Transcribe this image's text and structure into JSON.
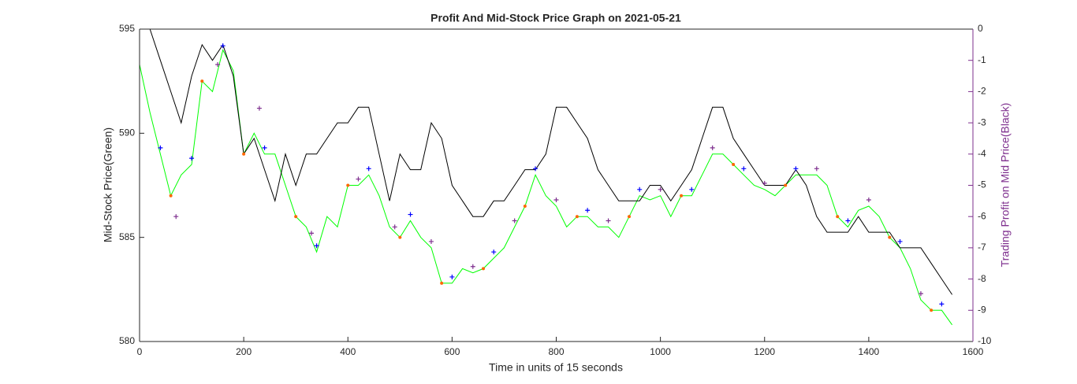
{
  "chart_data": {
    "type": "line",
    "title": "Profit And Mid-Stock Price Graph on 2021-05-21",
    "xlabel": "Time in units of 15 seconds",
    "ylabel": "Mid-Stock Price(Green)",
    "y2label": "Trading Profit on Mid Price(Black)",
    "xlim": [
      0,
      1600
    ],
    "xticks": [
      0,
      200,
      400,
      600,
      800,
      1000,
      1200,
      1400,
      1600
    ],
    "ylim": [
      580,
      595
    ],
    "yticks": [
      580,
      585,
      590,
      595
    ],
    "y2lim": [
      -10,
      0
    ],
    "y2ticks": [
      -10,
      -9,
      -8,
      -7,
      -6,
      -5,
      -4,
      -3,
      -2,
      -1,
      0
    ],
    "y2color": "#7e2f8e",
    "x": [
      0,
      20,
      40,
      60,
      80,
      100,
      120,
      140,
      160,
      180,
      200,
      220,
      240,
      260,
      280,
      300,
      320,
      340,
      360,
      380,
      400,
      420,
      440,
      460,
      480,
      500,
      520,
      540,
      560,
      580,
      600,
      620,
      640,
      660,
      680,
      700,
      720,
      740,
      760,
      780,
      800,
      820,
      840,
      860,
      880,
      900,
      920,
      940,
      960,
      980,
      1000,
      1020,
      1040,
      1060,
      1080,
      1100,
      1120,
      1140,
      1160,
      1180,
      1200,
      1220,
      1240,
      1260,
      1280,
      1300,
      1320,
      1340,
      1360,
      1380,
      1400,
      1420,
      1440,
      1460,
      1480,
      1500,
      1520,
      1540,
      1560
    ],
    "series": [
      {
        "color": "#00ff00",
        "values": [
          593.3,
          591,
          589,
          587,
          588,
          588.5,
          592.5,
          592,
          594,
          593,
          589,
          590,
          589,
          589,
          587.5,
          586,
          585.5,
          584.3,
          586,
          585.5,
          587.5,
          587.5,
          588,
          587,
          585.5,
          585,
          585.8,
          585,
          584.5,
          582.8,
          582.8,
          583.5,
          583.3,
          583.5,
          584,
          584.5,
          585.5,
          586.5,
          588,
          587,
          586.5,
          585.5,
          586,
          586,
          585.5,
          585.5,
          585,
          586,
          587,
          586.8,
          587,
          586,
          587,
          587,
          588,
          589,
          589,
          588.5,
          588,
          587.5,
          587.3,
          587,
          587.5,
          588,
          588,
          588,
          587.5,
          586,
          585.5,
          586.3,
          586.5,
          586,
          585,
          584.5,
          583.5,
          582,
          581.5,
          581.5,
          580.8
        ]
      },
      {
        "color": "#000000",
        "axis": "y2",
        "values": [
          0,
          0,
          -1,
          -2,
          -3,
          -1.5,
          -0.5,
          -1,
          -0.5,
          -1.5,
          -4,
          -3.5,
          -4.5,
          -5.5,
          -4,
          -5,
          -4,
          -4,
          -3.5,
          -3,
          -3,
          -2.5,
          -2.5,
          -4,
          -5.5,
          -4,
          -4.5,
          -4.5,
          -3,
          -3.5,
          -5,
          -5.5,
          -6,
          -6,
          -5.5,
          -5.5,
          -5,
          -4.5,
          -4.5,
          -4,
          -2.5,
          -2.5,
          -3,
          -3.5,
          -4.5,
          -5,
          -5.5,
          -5.5,
          -5.5,
          -5,
          -5,
          -5.5,
          -5,
          -4.5,
          -3.5,
          -2.5,
          -2.5,
          -3.5,
          -4,
          -4.5,
          -5,
          -5,
          -5,
          -4.5,
          -5,
          -6,
          -6.5,
          -6.5,
          -6.5,
          -6,
          -6.5,
          -6.5,
          -6.5,
          -7,
          -7,
          -7,
          -7.5,
          -8,
          -8.5
        ]
      }
    ],
    "markers": [
      {
        "symbol": "plus",
        "color": "#0000ff",
        "x": [
          40,
          100,
          160,
          240,
          340,
          440,
          520,
          600,
          680,
          760,
          860,
          960,
          1060,
          1160,
          1260,
          1360,
          1460,
          1540
        ],
        "y": [
          589.3,
          588.8,
          594.2,
          589.3,
          584.6,
          588.3,
          586.1,
          583.1,
          584.3,
          588.3,
          586.3,
          587.3,
          587.3,
          588.3,
          588.3,
          585.8,
          584.8,
          581.8
        ]
      },
      {
        "symbol": "plus",
        "color": "#7e2f8e",
        "x": [
          70,
          150,
          230,
          330,
          420,
          490,
          560,
          640,
          720,
          800,
          900,
          1000,
          1100,
          1200,
          1300,
          1400,
          1500
        ],
        "y": [
          586,
          593.3,
          591.2,
          585.2,
          587.8,
          585.5,
          584.8,
          583.6,
          585.8,
          586.8,
          585.8,
          587.3,
          589.3,
          587.6,
          588.3,
          586.8,
          582.3
        ]
      },
      {
        "symbol": "dot",
        "color": "#ff6600",
        "x": [
          60,
          120,
          200,
          300,
          400,
          500,
          580,
          660,
          740,
          840,
          940,
          1040,
          1140,
          1240,
          1340,
          1440,
          1520
        ],
        "y": [
          587,
          592.5,
          589,
          586,
          587.5,
          585,
          582.8,
          583.5,
          586.5,
          586,
          586,
          587,
          588.5,
          587.5,
          586,
          585,
          581.5
        ]
      }
    ]
  }
}
